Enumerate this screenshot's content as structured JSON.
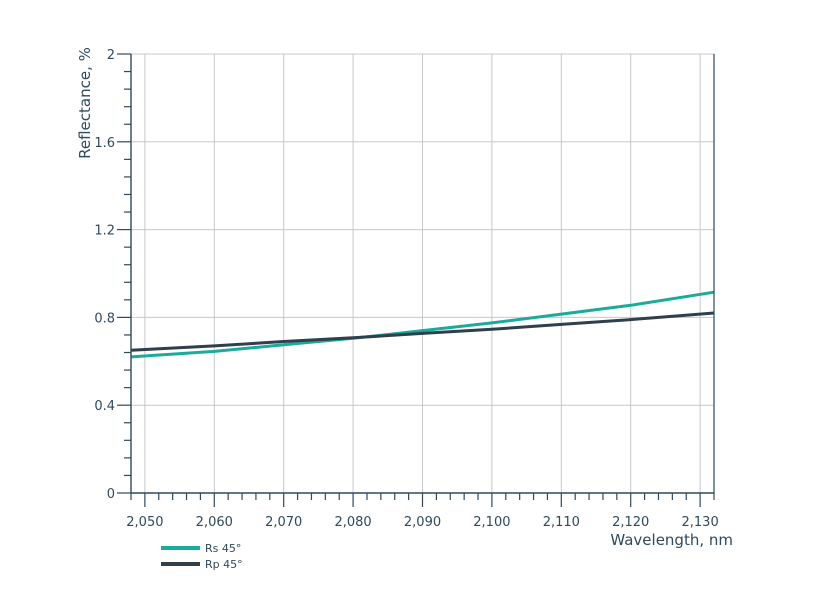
{
  "chart_data": {
    "type": "line",
    "xlabel": "Wavelength, nm",
    "ylabel": "Reflectance, %",
    "xlim": [
      2048,
      2132
    ],
    "ylim": [
      0,
      2
    ],
    "x_ticks": [
      2050,
      2060,
      2070,
      2080,
      2090,
      2100,
      2110,
      2120,
      2130
    ],
    "x_tick_labels": [
      "2,050",
      "2,060",
      "2,070",
      "2,080",
      "2,090",
      "2,100",
      "2,110",
      "2,120",
      "2,130"
    ],
    "y_ticks": [
      0,
      0.4,
      0.8,
      1.2,
      1.6,
      2
    ],
    "y_tick_labels": [
      "0",
      "0.4",
      "0.8",
      "1.2",
      "1.6",
      "2"
    ],
    "x_minor_step": 2,
    "y_minor_step": 0.08,
    "grid": true,
    "legend_position": "bottom-left",
    "series": [
      {
        "name": "Rs 45°",
        "color": "#1aab9b",
        "x": [
          2048,
          2060,
          2070,
          2080,
          2090,
          2100,
          2110,
          2120,
          2132
        ],
        "y": [
          0.62,
          0.645,
          0.675,
          0.705,
          0.74,
          0.775,
          0.815,
          0.855,
          0.915
        ]
      },
      {
        "name": "Rp 45°",
        "color": "#2e3f4d",
        "x": [
          2048,
          2060,
          2070,
          2080,
          2090,
          2100,
          2110,
          2120,
          2132
        ],
        "y": [
          0.65,
          0.67,
          0.69,
          0.707,
          0.727,
          0.746,
          0.768,
          0.79,
          0.82
        ]
      }
    ]
  }
}
